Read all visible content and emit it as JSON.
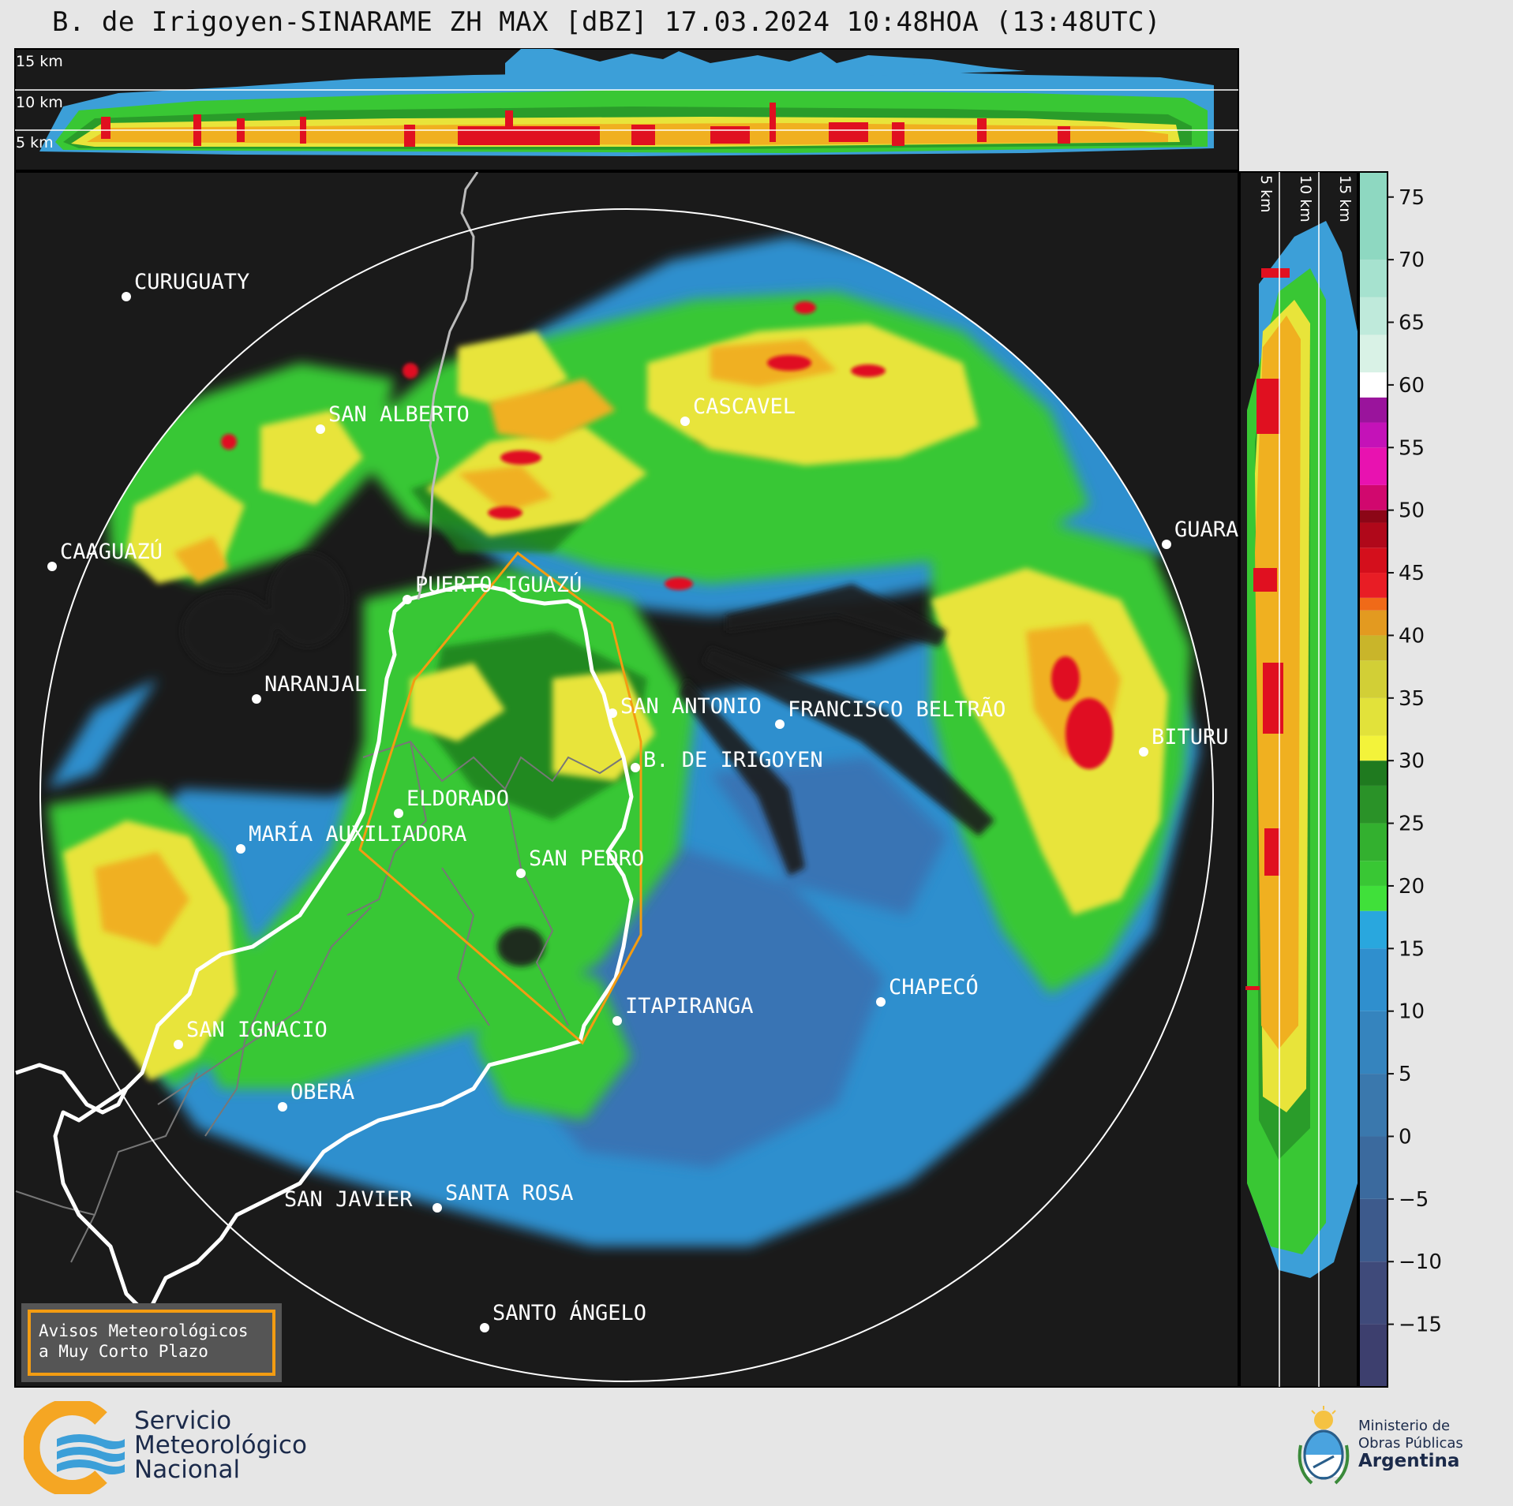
{
  "header": {
    "title": "B. de Irigoyen-SINARAME ZH MAX [dBZ] 17.03.2024 10:48HOA (13:48UTC)"
  },
  "top_profile": {
    "labels": [
      "15 km",
      "10 km",
      "5 km"
    ]
  },
  "side_profile": {
    "labels": [
      "5 km",
      "10 km",
      "15 km"
    ]
  },
  "colorbar": {
    "ticks": [
      "75",
      "70",
      "65",
      "60",
      "55",
      "50",
      "45",
      "40",
      "35",
      "30",
      "25",
      "20",
      "15",
      "10",
      "5",
      "0",
      "−5",
      "−10",
      "−15"
    ]
  },
  "cities": [
    {
      "name": "CURUGUATY"
    },
    {
      "name": "SAN ALBERTO"
    },
    {
      "name": "CASCAVEL"
    },
    {
      "name": "CAAGUAZÚ"
    },
    {
      "name": "PUERTO IGUAZÚ"
    },
    {
      "name": "GUARA"
    },
    {
      "name": "NARANJAL"
    },
    {
      "name": "SAN ANTONIO"
    },
    {
      "name": "FRANCISCO BELTRÃO"
    },
    {
      "name": "B. DE IRIGOYEN"
    },
    {
      "name": "BITURU"
    },
    {
      "name": "ELDORADO"
    },
    {
      "name": "MARÍA AUXILIADORA"
    },
    {
      "name": "SAN PEDRO"
    },
    {
      "name": "ITAPIRANGA"
    },
    {
      "name": "CHAPECÓ"
    },
    {
      "name": "SAN IGNACIO"
    },
    {
      "name": "OBERÁ"
    },
    {
      "name": "SAN JAVIER"
    },
    {
      "name": "SANTA ROSA"
    },
    {
      "name": "SANTO ÁNGELO"
    }
  ],
  "legend": {
    "line1": "Avisos Meteorológicos",
    "line2": "a Muy Corto Plazo"
  },
  "footer": {
    "smn": {
      "line1": "Servicio",
      "line2": "Meteorológico",
      "line3": "Nacional"
    },
    "ministry": {
      "line1": "Ministerio de",
      "line2": "Obras Públicas",
      "line3": "Argentina"
    }
  },
  "colors": {
    "background": "#1a1a1a",
    "range_ring": "#ffffff",
    "warning_polygon": "#f39c12",
    "border": "#ffffff",
    "smn_orange": "#f5a623",
    "smn_blue": "#3c9fd8"
  }
}
